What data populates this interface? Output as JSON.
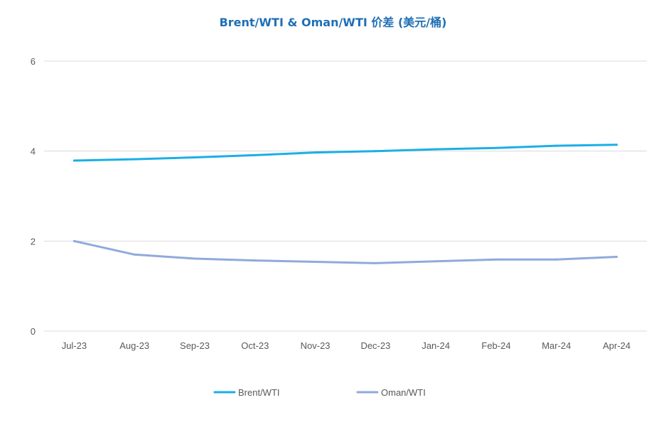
{
  "chart_data": {
    "type": "line",
    "title": "Brent/WTI & Oman/WTI 价差 (美元/桶)",
    "xlabel": "",
    "ylabel": "",
    "categories": [
      "Jul-23",
      "Aug-23",
      "Sep-23",
      "Oct-23",
      "Nov-23",
      "Dec-23",
      "Jan-24",
      "Feb-24",
      "Mar-24",
      "Apr-24"
    ],
    "ylim": [
      0,
      6
    ],
    "yticks": [
      0,
      2,
      4,
      6
    ],
    "grid": true,
    "legend_position": "bottom",
    "series": [
      {
        "name": "Brent/WTI",
        "color": "#1aafe6",
        "values": [
          3.79,
          3.82,
          3.86,
          3.91,
          3.97,
          4.0,
          4.04,
          4.07,
          4.12,
          4.14
        ]
      },
      {
        "name": "Oman/WTI",
        "color": "#8faadc",
        "values": [
          2.0,
          1.7,
          1.61,
          1.57,
          1.54,
          1.51,
          1.55,
          1.59,
          1.59,
          1.65
        ]
      }
    ]
  },
  "colors": {
    "title": "#1f6fb5",
    "grid": "#d9d9d9",
    "tick": "#595959"
  }
}
